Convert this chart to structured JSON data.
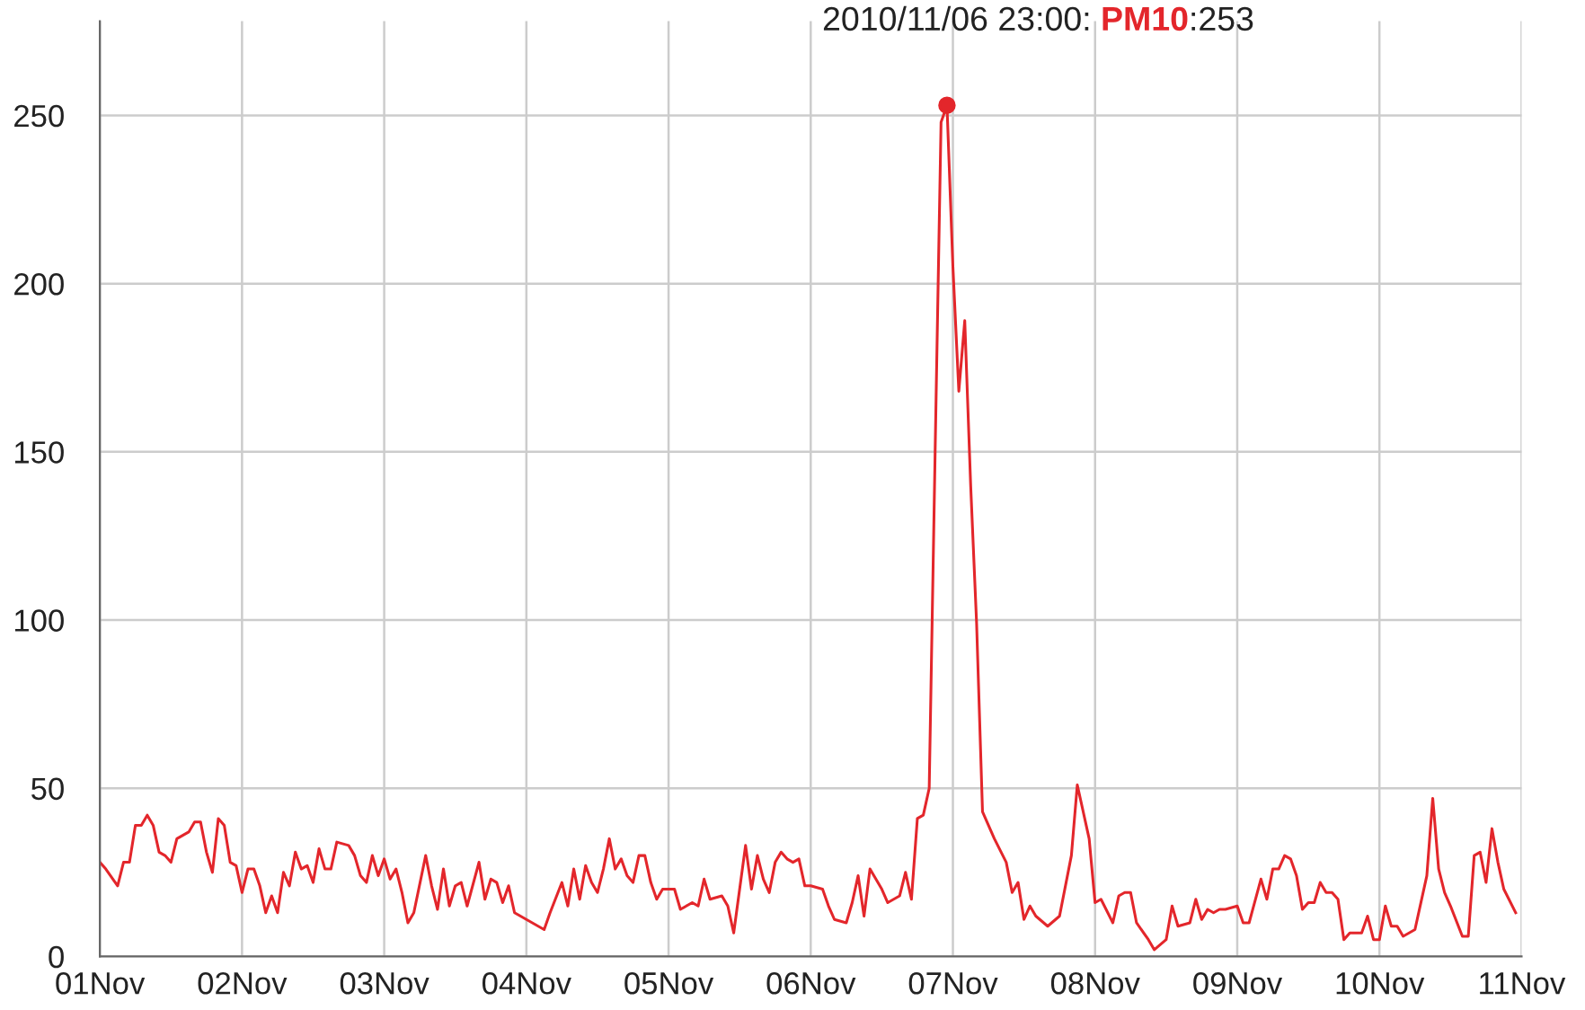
{
  "chart_data": {
    "type": "line",
    "x": [
      "2010-11-01T00:00",
      "2010-11-01T01:00",
      "2010-11-01T03:00",
      "2010-11-01T04:00",
      "2010-11-01T05:00",
      "2010-11-01T06:00",
      "2010-11-01T07:00",
      "2010-11-01T08:00",
      "2010-11-01T09:00",
      "2010-11-01T10:00",
      "2010-11-01T11:00",
      "2010-11-01T12:00",
      "2010-11-01T13:00",
      "2010-11-01T14:00",
      "2010-11-01T15:00",
      "2010-11-01T16:00",
      "2010-11-01T17:00",
      "2010-11-01T18:00",
      "2010-11-01T19:00",
      "2010-11-01T20:00",
      "2010-11-01T21:00",
      "2010-11-01T22:00",
      "2010-11-01T23:00",
      "2010-11-02T00:00",
      "2010-11-02T01:00",
      "2010-11-02T02:00",
      "2010-11-02T03:00",
      "2010-11-02T04:00",
      "2010-11-02T05:00",
      "2010-11-02T06:00",
      "2010-11-02T07:00",
      "2010-11-02T08:00",
      "2010-11-02T09:00",
      "2010-11-02T10:00",
      "2010-11-02T11:00",
      "2010-11-02T12:00",
      "2010-11-02T13:00",
      "2010-11-02T14:00",
      "2010-11-02T15:00",
      "2010-11-02T16:00",
      "2010-11-02T18:00",
      "2010-11-02T19:00",
      "2010-11-02T20:00",
      "2010-11-02T21:00",
      "2010-11-02T22:00",
      "2010-11-02T23:00",
      "2010-11-03T00:00",
      "2010-11-03T01:00",
      "2010-11-03T02:00",
      "2010-11-03T03:00",
      "2010-11-03T04:00",
      "2010-11-03T05:00",
      "2010-11-03T07:00",
      "2010-11-03T08:00",
      "2010-11-03T09:00",
      "2010-11-03T10:00",
      "2010-11-03T11:00",
      "2010-11-03T12:00",
      "2010-11-03T13:00",
      "2010-11-03T14:00",
      "2010-11-03T16:00",
      "2010-11-03T17:00",
      "2010-11-03T18:00",
      "2010-11-03T19:00",
      "2010-11-03T20:00",
      "2010-11-03T21:00",
      "2010-11-03T22:00",
      "2010-11-04T00:00",
      "2010-11-04T02:00",
      "2010-11-04T03:00",
      "2010-11-04T04:00",
      "2010-11-04T06:00",
      "2010-11-04T07:00",
      "2010-11-04T08:00",
      "2010-11-04T09:00",
      "2010-11-04T10:00",
      "2010-11-04T11:00",
      "2010-11-04T12:00",
      "2010-11-04T13:00",
      "2010-11-04T14:00",
      "2010-11-04T15:00",
      "2010-11-04T16:00",
      "2010-11-04T17:00",
      "2010-11-04T18:00",
      "2010-11-04T19:00",
      "2010-11-04T20:00",
      "2010-11-04T21:00",
      "2010-11-04T22:00",
      "2010-11-04T23:00",
      "2010-11-05T01:00",
      "2010-11-05T02:00",
      "2010-11-05T04:00",
      "2010-11-05T05:00",
      "2010-11-05T06:00",
      "2010-11-05T07:00",
      "2010-11-05T09:00",
      "2010-11-05T10:00",
      "2010-11-05T11:00",
      "2010-11-05T12:00",
      "2010-11-05T13:00",
      "2010-11-05T14:00",
      "2010-11-05T15:00",
      "2010-11-05T16:00",
      "2010-11-05T17:00",
      "2010-11-05T18:00",
      "2010-11-05T19:00",
      "2010-11-05T20:00",
      "2010-11-05T21:00",
      "2010-11-05T22:00",
      "2010-11-05T23:00",
      "2010-11-06T00:00",
      "2010-11-06T02:00",
      "2010-11-06T03:00",
      "2010-11-06T04:00",
      "2010-11-06T06:00",
      "2010-11-06T07:00",
      "2010-11-06T08:00",
      "2010-11-06T09:00",
      "2010-11-06T10:00",
      "2010-11-06T11:00",
      "2010-11-06T12:00",
      "2010-11-06T13:00",
      "2010-11-06T14:00",
      "2010-11-06T15:00",
      "2010-11-06T16:00",
      "2010-11-06T17:00",
      "2010-11-06T18:00",
      "2010-11-06T19:00",
      "2010-11-06T20:00",
      "2010-11-06T21:00",
      "2010-11-06T22:00",
      "2010-11-06T23:00",
      "2010-11-07T00:00",
      "2010-11-07T01:00",
      "2010-11-07T02:00",
      "2010-11-07T03:00",
      "2010-11-07T04:00",
      "2010-11-07T05:00",
      "2010-11-07T07:00",
      "2010-11-07T09:00",
      "2010-11-07T10:00",
      "2010-11-07T11:00",
      "2010-11-07T12:00",
      "2010-11-07T13:00",
      "2010-11-07T14:00",
      "2010-11-07T16:00",
      "2010-11-07T18:00",
      "2010-11-07T20:00",
      "2010-11-07T21:00",
      "2010-11-07T23:00",
      "2010-11-08T00:00",
      "2010-11-08T01:00",
      "2010-11-08T03:00",
      "2010-11-08T04:00",
      "2010-11-08T05:00",
      "2010-11-08T06:00",
      "2010-11-08T07:00",
      "2010-11-08T09:00",
      "2010-11-08T10:00",
      "2010-11-08T12:00",
      "2010-11-08T13:00",
      "2010-11-08T14:00",
      "2010-11-08T16:00",
      "2010-11-08T17:00",
      "2010-11-08T18:00",
      "2010-11-08T19:00",
      "2010-11-08T20:00",
      "2010-11-08T21:00",
      "2010-11-08T22:00",
      "2010-11-09T00:00",
      "2010-11-09T01:00",
      "2010-11-09T02:00",
      "2010-11-09T04:00",
      "2010-11-09T05:00",
      "2010-11-09T06:00",
      "2010-11-09T07:00",
      "2010-11-09T08:00",
      "2010-11-09T09:00",
      "2010-11-09T10:00",
      "2010-11-09T11:00",
      "2010-11-09T12:00",
      "2010-11-09T13:00",
      "2010-11-09T14:00",
      "2010-11-09T15:00",
      "2010-11-09T16:00",
      "2010-11-09T17:00",
      "2010-11-09T18:00",
      "2010-11-09T19:00",
      "2010-11-09T21:00",
      "2010-11-09T22:00",
      "2010-11-09T23:00",
      "2010-11-10T00:00",
      "2010-11-10T01:00",
      "2010-11-10T02:00",
      "2010-11-10T03:00",
      "2010-11-10T04:00",
      "2010-11-10T06:00",
      "2010-11-10T08:00",
      "2010-11-10T09:00",
      "2010-11-10T10:00",
      "2010-11-10T11:00",
      "2010-11-10T12:00",
      "2010-11-10T14:00",
      "2010-11-10T15:00",
      "2010-11-10T16:00",
      "2010-11-10T17:00",
      "2010-11-10T18:00",
      "2010-11-10T19:00",
      "2010-11-10T20:00",
      "2010-11-10T21:00",
      "2010-11-10T23:00"
    ],
    "series": [
      {
        "name": "PM10",
        "color": "#e3262b",
        "values": [
          28,
          26,
          21,
          28,
          28,
          39,
          39,
          42,
          39,
          31,
          30,
          28,
          35,
          36,
          37,
          40,
          40,
          31,
          25,
          41,
          39,
          28,
          27,
          19,
          26,
          26,
          21,
          13,
          18,
          13,
          25,
          21,
          31,
          26,
          27,
          22,
          32,
          26,
          26,
          34,
          33,
          30,
          24,
          22,
          30,
          24,
          29,
          23,
          26,
          19,
          10,
          13,
          30,
          21,
          14,
          26,
          15,
          21,
          22,
          15,
          28,
          17,
          23,
          22,
          16,
          21,
          13,
          11,
          9,
          8,
          13,
          22,
          15,
          26,
          17,
          27,
          22,
          19,
          26,
          35,
          26,
          29,
          24,
          22,
          30,
          30,
          22,
          17,
          20,
          20,
          14,
          16,
          15,
          23,
          17,
          18,
          15,
          7,
          20,
          33,
          20,
          30,
          23,
          19,
          28,
          31,
          29,
          28,
          29,
          21,
          21,
          20,
          15,
          11,
          10,
          16,
          24,
          12,
          26,
          23,
          20,
          16,
          17,
          18,
          25,
          17,
          41,
          42,
          50,
          150,
          248,
          253,
          205,
          168,
          189,
          140,
          99,
          43,
          35,
          28,
          19,
          22,
          11,
          15,
          12,
          9,
          12,
          30,
          51,
          35,
          16,
          17,
          10,
          18,
          19,
          19,
          10,
          5,
          2,
          5,
          15,
          9,
          10,
          17,
          11,
          14,
          13,
          14,
          14,
          15,
          10,
          10,
          23,
          17,
          26,
          26,
          30,
          29,
          24,
          14,
          16,
          16,
          22,
          19,
          19,
          17,
          5,
          7,
          7,
          12,
          5,
          5,
          15,
          9,
          9,
          6,
          8,
          24,
          47,
          26,
          19,
          15,
          6,
          6,
          30,
          31,
          22,
          38,
          28,
          20,
          13
        ]
      }
    ],
    "xlim": [
      "2010-11-01",
      "2010-11-11"
    ],
    "xticks": [
      {
        "value": "2010-11-01",
        "label": "01Nov"
      },
      {
        "value": "2010-11-02",
        "label": "02Nov"
      },
      {
        "value": "2010-11-03",
        "label": "03Nov"
      },
      {
        "value": "2010-11-04",
        "label": "04Nov"
      },
      {
        "value": "2010-11-05",
        "label": "05Nov"
      },
      {
        "value": "2010-11-06",
        "label": "06Nov"
      },
      {
        "value": "2010-11-07",
        "label": "07Nov"
      },
      {
        "value": "2010-11-08",
        "label": "08Nov"
      },
      {
        "value": "2010-11-09",
        "label": "09Nov"
      },
      {
        "value": "2010-11-10",
        "label": "10Nov"
      },
      {
        "value": "2010-11-11",
        "label": "11Nov"
      }
    ],
    "ylim": [
      0,
      278
    ],
    "yticks": [
      0,
      50,
      100,
      150,
      200,
      250
    ],
    "grid": true,
    "legend": false,
    "marker": "none",
    "line_style": "solid",
    "annotations": [
      {
        "text": "2010/11/06 23:00:",
        "x": "2010-11-06T23:00",
        "y": 253
      },
      ":253"
    ]
  }
}
